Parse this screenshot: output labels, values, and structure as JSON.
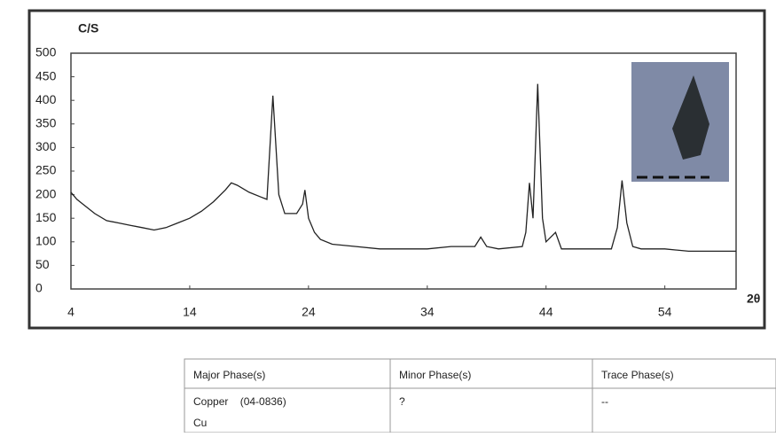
{
  "chart_data": {
    "type": "line",
    "ylabel": "C/S",
    "xlabel": "2θ",
    "x": [
      4,
      4.5,
      5,
      6,
      7,
      8,
      9,
      10,
      11,
      12,
      13,
      14,
      15,
      16,
      17,
      17.5,
      18,
      19,
      20,
      20.5,
      21,
      21.5,
      22,
      23,
      23.5,
      23.7,
      24,
      24.5,
      25,
      26,
      28,
      30,
      32,
      34,
      36,
      38,
      38.5,
      39,
      40,
      42,
      42.3,
      42.6,
      42.9,
      43.3,
      43.7,
      44,
      44.8,
      45.3,
      46,
      48,
      49.5,
      50,
      50.4,
      50.8,
      51.3,
      52,
      54,
      56,
      58,
      60
    ],
    "values": [
      205,
      190,
      180,
      160,
      145,
      140,
      135,
      130,
      125,
      130,
      140,
      150,
      165,
      185,
      210,
      225,
      220,
      205,
      195,
      190,
      410,
      200,
      160,
      160,
      180,
      210,
      150,
      120,
      105,
      95,
      90,
      85,
      85,
      85,
      90,
      90,
      110,
      90,
      85,
      90,
      120,
      225,
      150,
      435,
      150,
      100,
      120,
      85,
      85,
      85,
      85,
      130,
      230,
      140,
      90,
      85,
      85,
      80,
      80,
      80
    ],
    "color": "#222222",
    "xlim": [
      4,
      60
    ],
    "xticks": [
      4,
      14,
      24,
      34,
      44,
      54
    ],
    "ylim": [
      0,
      500
    ],
    "yticks": [
      0,
      50,
      100,
      150,
      200,
      250,
      300,
      350,
      400,
      450,
      500
    ]
  },
  "table": {
    "header": [
      "Major Phase(s)",
      "Minor Phase(s)",
      "Trace Phase(s)"
    ],
    "rows": [
      [
        "Copper    (04-0836)",
        "?",
        "--"
      ],
      [
        "Cu",
        "",
        ""
      ]
    ]
  }
}
